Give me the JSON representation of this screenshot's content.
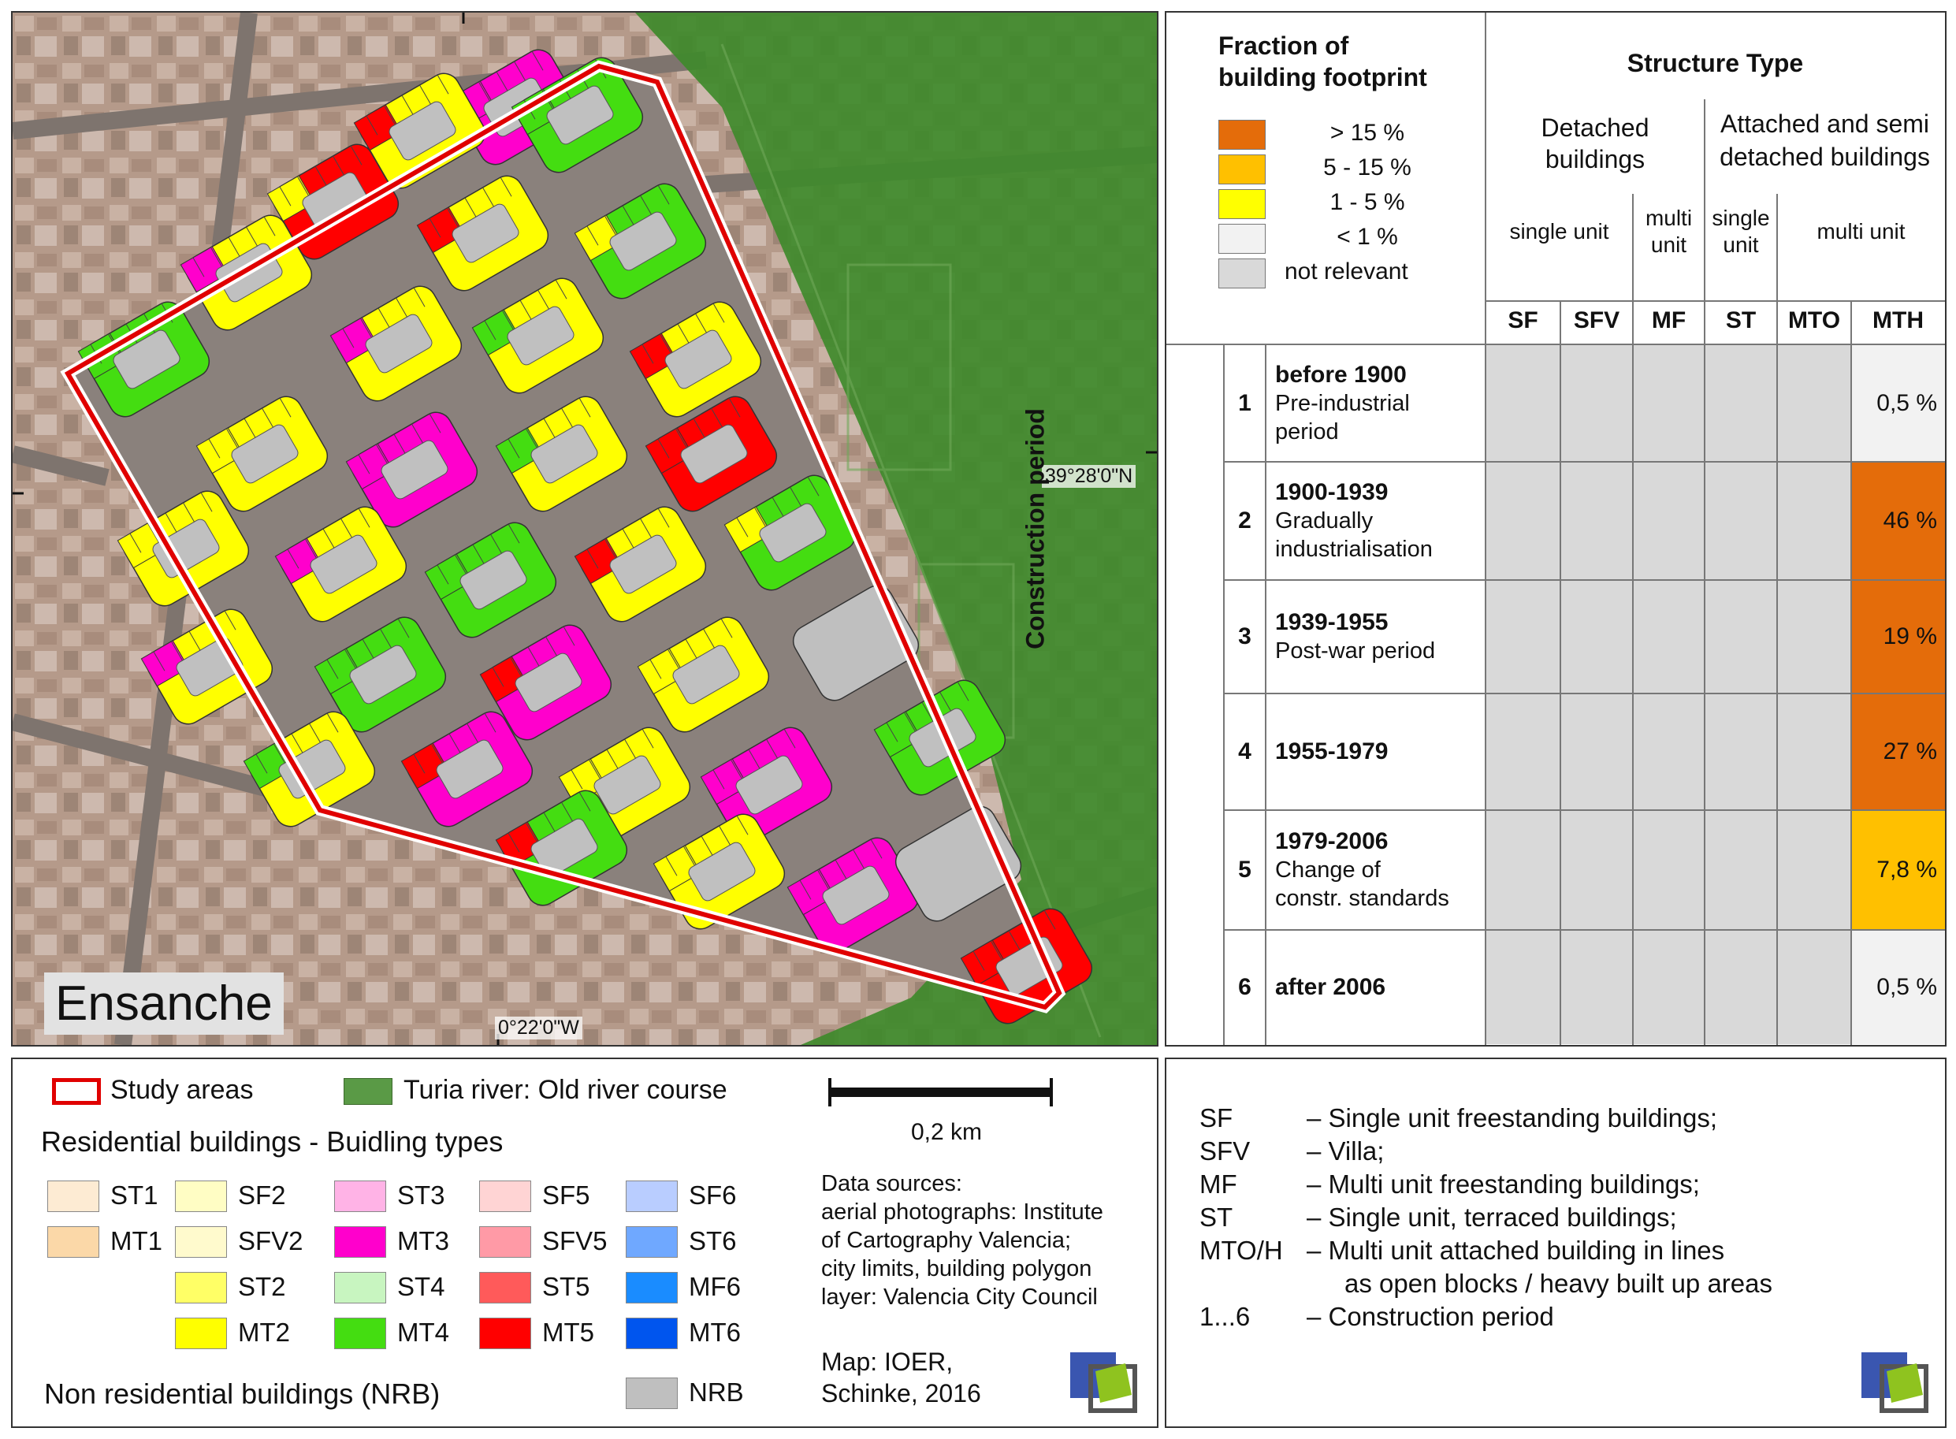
{
  "map": {
    "area_name": "Ensanche",
    "lat_label": "39°28'0\"N",
    "lon_label": "0°22'0\"W"
  },
  "table": {
    "header_fraction": [
      "Fraction of",
      "building footprint"
    ],
    "fraction_legend": [
      {
        "label": "> 15 %",
        "color": "#e46c0a"
      },
      {
        "label": "5 - 15 %",
        "color": "#ffc000"
      },
      {
        "label": "1 - 5 %",
        "color": "#ffff00"
      },
      {
        "label": "< 1 %",
        "color": "#f2f2f2"
      },
      {
        "label": "not relevant",
        "color": "#d9d9d9"
      }
    ],
    "structure_type_title": "Structure Type",
    "detached_title": [
      "Detached",
      "buildings"
    ],
    "attached_title": [
      "Attached and semi",
      "detached buildings"
    ],
    "subheads": {
      "detached_single": "single unit",
      "detached_multi": [
        "multi",
        "unit"
      ],
      "attached_single": [
        "single",
        "unit"
      ],
      "attached_multi": "multi unit"
    },
    "columns": [
      "SF",
      "SFV",
      "MF",
      "ST",
      "MTO",
      "MTH"
    ],
    "construction_period_label": "Construction period",
    "rows": [
      {
        "num": "1",
        "title": "before 1900",
        "desc": [
          "Pre-industrial",
          "period"
        ],
        "mth": "0,5 %",
        "level": "low"
      },
      {
        "num": "2",
        "title": "1900-1939",
        "desc": [
          "Gradually",
          "industrialisation"
        ],
        "mth": "46 %",
        "level": "high"
      },
      {
        "num": "3",
        "title": "1939-1955",
        "desc": [
          "Post-war period"
        ],
        "mth": "19 %",
        "level": "high"
      },
      {
        "num": "4",
        "title": "1955-1979",
        "desc": [],
        "mth": "27 %",
        "level": "high"
      },
      {
        "num": "5",
        "title": "1979-2006",
        "desc": [
          "Change of",
          "constr. standards"
        ],
        "mth": "7,8 %",
        "level": "mid"
      },
      {
        "num": "6",
        "title": "after 2006",
        "desc": [],
        "mth": "0,5 %",
        "level": "low"
      }
    ],
    "level_colors": {
      "high": "#e46c0a",
      "mid": "#ffc000",
      "low": "#f2f2f2",
      "none": "#d9d9d9"
    }
  },
  "legend": {
    "study_areas": "Study areas",
    "turia": "Turia river: Old river course",
    "residential_title": "Residential buildings - Buidling types",
    "nonres_title": "Non residential buildings (NRB)",
    "scale_label": "0,2 km",
    "data_sources": [
      "Data sources:",
      "aerial photographs: Institute",
      "of Cartography Valencia;",
      "city limits, building polygon",
      "layer: Valencia City Council"
    ],
    "map_credit": [
      "Map: IOER,",
      "Schinke, 2016"
    ],
    "types": [
      {
        "code": "ST1",
        "color": "#fdebd3"
      },
      {
        "code": "MT1",
        "color": "#fbd8a8"
      },
      {
        "code": "SF2",
        "color": "#fffdc4"
      },
      {
        "code": "SFV2",
        "color": "#fffacd"
      },
      {
        "code": "ST2",
        "color": "#ffff66"
      },
      {
        "code": "MT2",
        "color": "#ffff00"
      },
      {
        "code": "ST3",
        "color": "#ffb3e6"
      },
      {
        "code": "MT3",
        "color": "#ff00cc"
      },
      {
        "code": "ST4",
        "color": "#c8f5c0"
      },
      {
        "code": "MT4",
        "color": "#44dd11"
      },
      {
        "code": "SF5",
        "color": "#ffd4d4"
      },
      {
        "code": "SFV5",
        "color": "#ff9aa6"
      },
      {
        "code": "ST5",
        "color": "#ff5a5a"
      },
      {
        "code": "MT5",
        "color": "#ff0000"
      },
      {
        "code": "SF6",
        "color": "#b9cdff"
      },
      {
        "code": "ST6",
        "color": "#6fa8ff"
      },
      {
        "code": "MF6",
        "color": "#1a8cff"
      },
      {
        "code": "MT6",
        "color": "#0055ee"
      },
      {
        "code": "NRB",
        "color": "#bfbfbf"
      }
    ],
    "study_color": "#e00000",
    "turia_color": "#5a9a46"
  },
  "abbreviations": [
    {
      "code": "SF",
      "desc": [
        "– Single unit freestanding buildings;"
      ]
    },
    {
      "code": "SFV",
      "desc": [
        "– Villa;"
      ]
    },
    {
      "code": "MF",
      "desc": [
        "– Multi unit freestanding buildings;"
      ]
    },
    {
      "code": "ST",
      "desc": [
        "– Single unit, terraced buildings;"
      ]
    },
    {
      "code": "MTO/H",
      "desc": [
        "– Multi unit attached building in lines",
        "as open blocks / heavy built up areas"
      ]
    },
    {
      "code": "1...6",
      "desc": [
        "– Construction period"
      ]
    }
  ]
}
